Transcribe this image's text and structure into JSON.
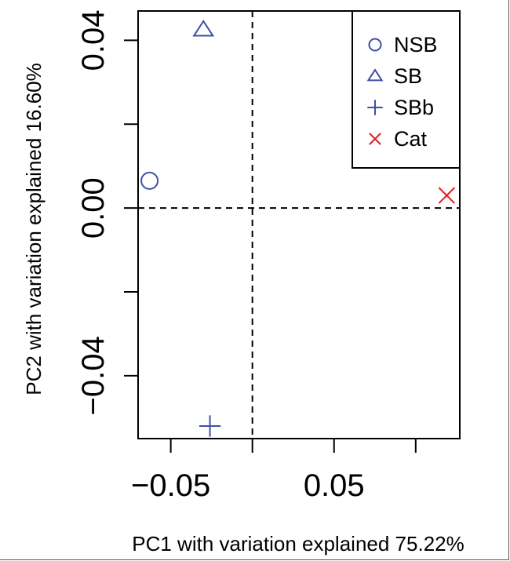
{
  "chart_data": {
    "type": "scatter",
    "xlabel": "PC1 with variation explained 75.22%",
    "ylabel": "PC2 with variation explained 16.60%",
    "xlim": [
      -0.07,
      0.127
    ],
    "ylim": [
      -0.055,
      0.047
    ],
    "x_ticks": [
      -0.05,
      0,
      0.05,
      0.1
    ],
    "x_tick_labels": [
      "−0.05",
      "",
      "0.05",
      ""
    ],
    "y_ticks": [
      -0.04,
      -0.02,
      0,
      0.02,
      0.04
    ],
    "y_tick_labels": [
      "−0.04",
      "",
      "0.00",
      "",
      "0.04"
    ],
    "reference_lines": {
      "x": 0,
      "y": 0,
      "style": "dashed"
    },
    "legend_placement": "top-right",
    "series": [
      {
        "name": "NSB",
        "marker": "circle",
        "color": "#3f4fa8",
        "points": [
          [
            -0.063,
            0.0065
          ]
        ]
      },
      {
        "name": "SB",
        "marker": "triangle",
        "color": "#3f4fa8",
        "points": [
          [
            -0.03,
            0.0425
          ]
        ]
      },
      {
        "name": "SBb",
        "marker": "plus",
        "color": "#3f4fa8",
        "points": [
          [
            -0.026,
            -0.052
          ]
        ]
      },
      {
        "name": "Cat",
        "marker": "x",
        "color": "#e02020",
        "points": [
          [
            0.119,
            0.003
          ]
        ]
      }
    ]
  }
}
